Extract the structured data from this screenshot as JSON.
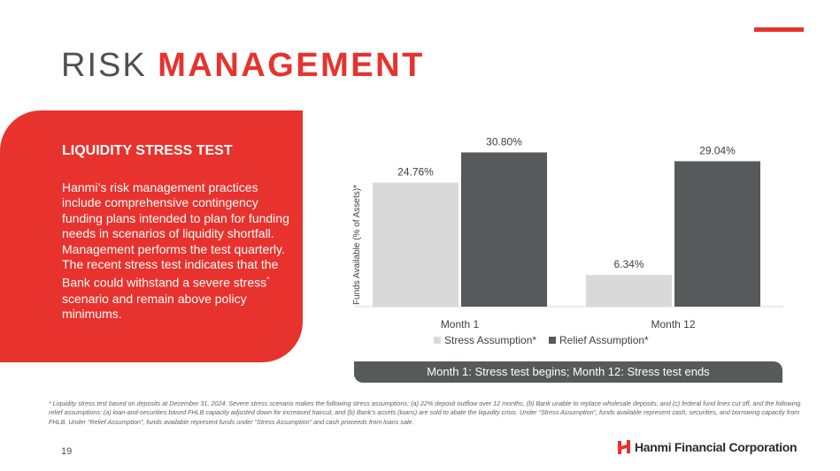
{
  "header": {
    "title_part1": "RISK",
    "title_part2": "MANAGEMENT",
    "accent_color": "#e8322d"
  },
  "panel": {
    "heading": "LIQUIDITY STRESS TEST",
    "body_main": "Hanmi’s risk management practices include comprehensive contingency funding plans intended to plan for funding needs in scenarios of liquidity shortfall. Management performs the test quarterly. The recent stress test indicates that the Bank could withstand a severe stress",
    "body_sup": "*",
    "body_end": " scenario and remain above policy minimums."
  },
  "chart_data": {
    "type": "bar",
    "categories": [
      "Month 1",
      "Month 12"
    ],
    "series": [
      {
        "name": "Stress Assumption*",
        "values": [
          24.76,
          6.34
        ],
        "labels": [
          "24.76%",
          "6.34%"
        ],
        "color": "#d9d9d9"
      },
      {
        "name": "Relief Assumption*",
        "values": [
          30.8,
          29.04
        ],
        "labels": [
          "30.80%",
          "29.04%"
        ],
        "color": "#58595b"
      }
    ],
    "ylabel": "Funds Available (% of Assets)*",
    "ylim": [
      0,
      33
    ],
    "legend": "bottom",
    "grid": false
  },
  "caption": "Month 1: Stress test begins; Month 12: Stress test ends",
  "footnote": "* Liquidity stress test based on deposits at December 31, 2024. Severe stress scenario makes the following stress assumptions: (a) 22% deposit outflow over 12 months, (b) Bank unable to replace wholesale deposits, and (c) federal fund lines cut off, and the following relief assumptions: (a) loan-and-securities based FHLB capacity adjusted down for increased haircut, and (b) Bank’s assets (loans) are sold to abate the liquidity crisis. Under “Stress Assumption”, funds available represent cash, securities, and borrowing capacity from FHLB. Under “Relief Assumption”, funds available represent funds under “Stress Assumption” and cash proceeds from loans sale.",
  "page_number": "19",
  "logo": {
    "text": "Hanmi Financial Corporation",
    "icon": "hanmi-logo-icon"
  }
}
